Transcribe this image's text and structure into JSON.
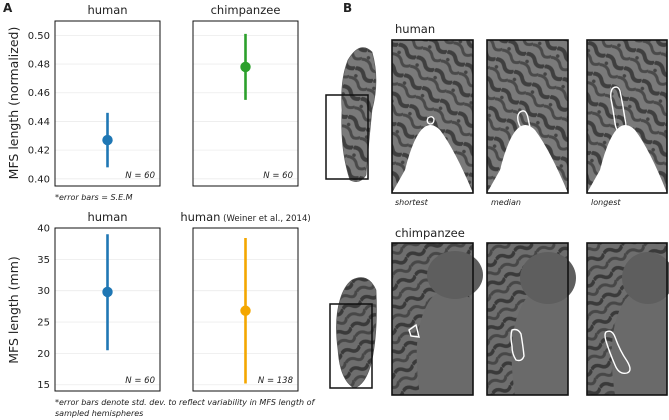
{
  "panels": {
    "a": "A",
    "b": "B"
  },
  "chart_data": [
    {
      "type": "scatter",
      "title": "human",
      "ylabel": "MFS length (normalized)",
      "ylim": [
        0.395,
        0.51
      ],
      "yticks": [
        0.4,
        0.42,
        0.44,
        0.46,
        0.48,
        0.5
      ],
      "ytick_labels": [
        "0.40",
        "0.42",
        "0.44",
        "0.46",
        "0.48",
        "0.50"
      ],
      "point": {
        "y": 0.427,
        "err_low": 0.408,
        "err_high": 0.446
      },
      "color": "#1f77b4",
      "n_label": "N = 60"
    },
    {
      "type": "scatter",
      "title": "chimpanzee",
      "ylim": [
        0.395,
        0.51
      ],
      "point": {
        "y": 0.478,
        "err_low": 0.455,
        "err_high": 0.501
      },
      "color": "#2ca02c",
      "n_label": "N = 60"
    },
    {
      "type": "scatter",
      "title": "human",
      "ylabel": "MFS length (mm)",
      "ylim": [
        14,
        40
      ],
      "yticks": [
        15,
        20,
        25,
        30,
        35,
        40
      ],
      "ytick_labels": [
        "15",
        "20",
        "25",
        "30",
        "35",
        "40"
      ],
      "point": {
        "y": 29.8,
        "err_low": 20.5,
        "err_high": 39.0
      },
      "color": "#1f77b4",
      "n_label": "N = 60"
    },
    {
      "type": "scatter",
      "title": "human",
      "title_suffix": "(Weiner et al., 2014)",
      "ylim": [
        14,
        40
      ],
      "point": {
        "y": 26.8,
        "err_low": 15.2,
        "err_high": 38.4
      },
      "color": "#f4a700",
      "n_label": "N = 138"
    }
  ],
  "notes": {
    "top": "*error bars  = S.E.M",
    "bottom_line1": "*error bars denote std. dev. to reflect variability in MFS length of",
    "bottom_line2": "sampled hemispheres"
  },
  "brains": {
    "human_label": "human",
    "chimp_label": "chimpanzee",
    "captions": [
      "shortest",
      "median",
      "longest"
    ]
  }
}
